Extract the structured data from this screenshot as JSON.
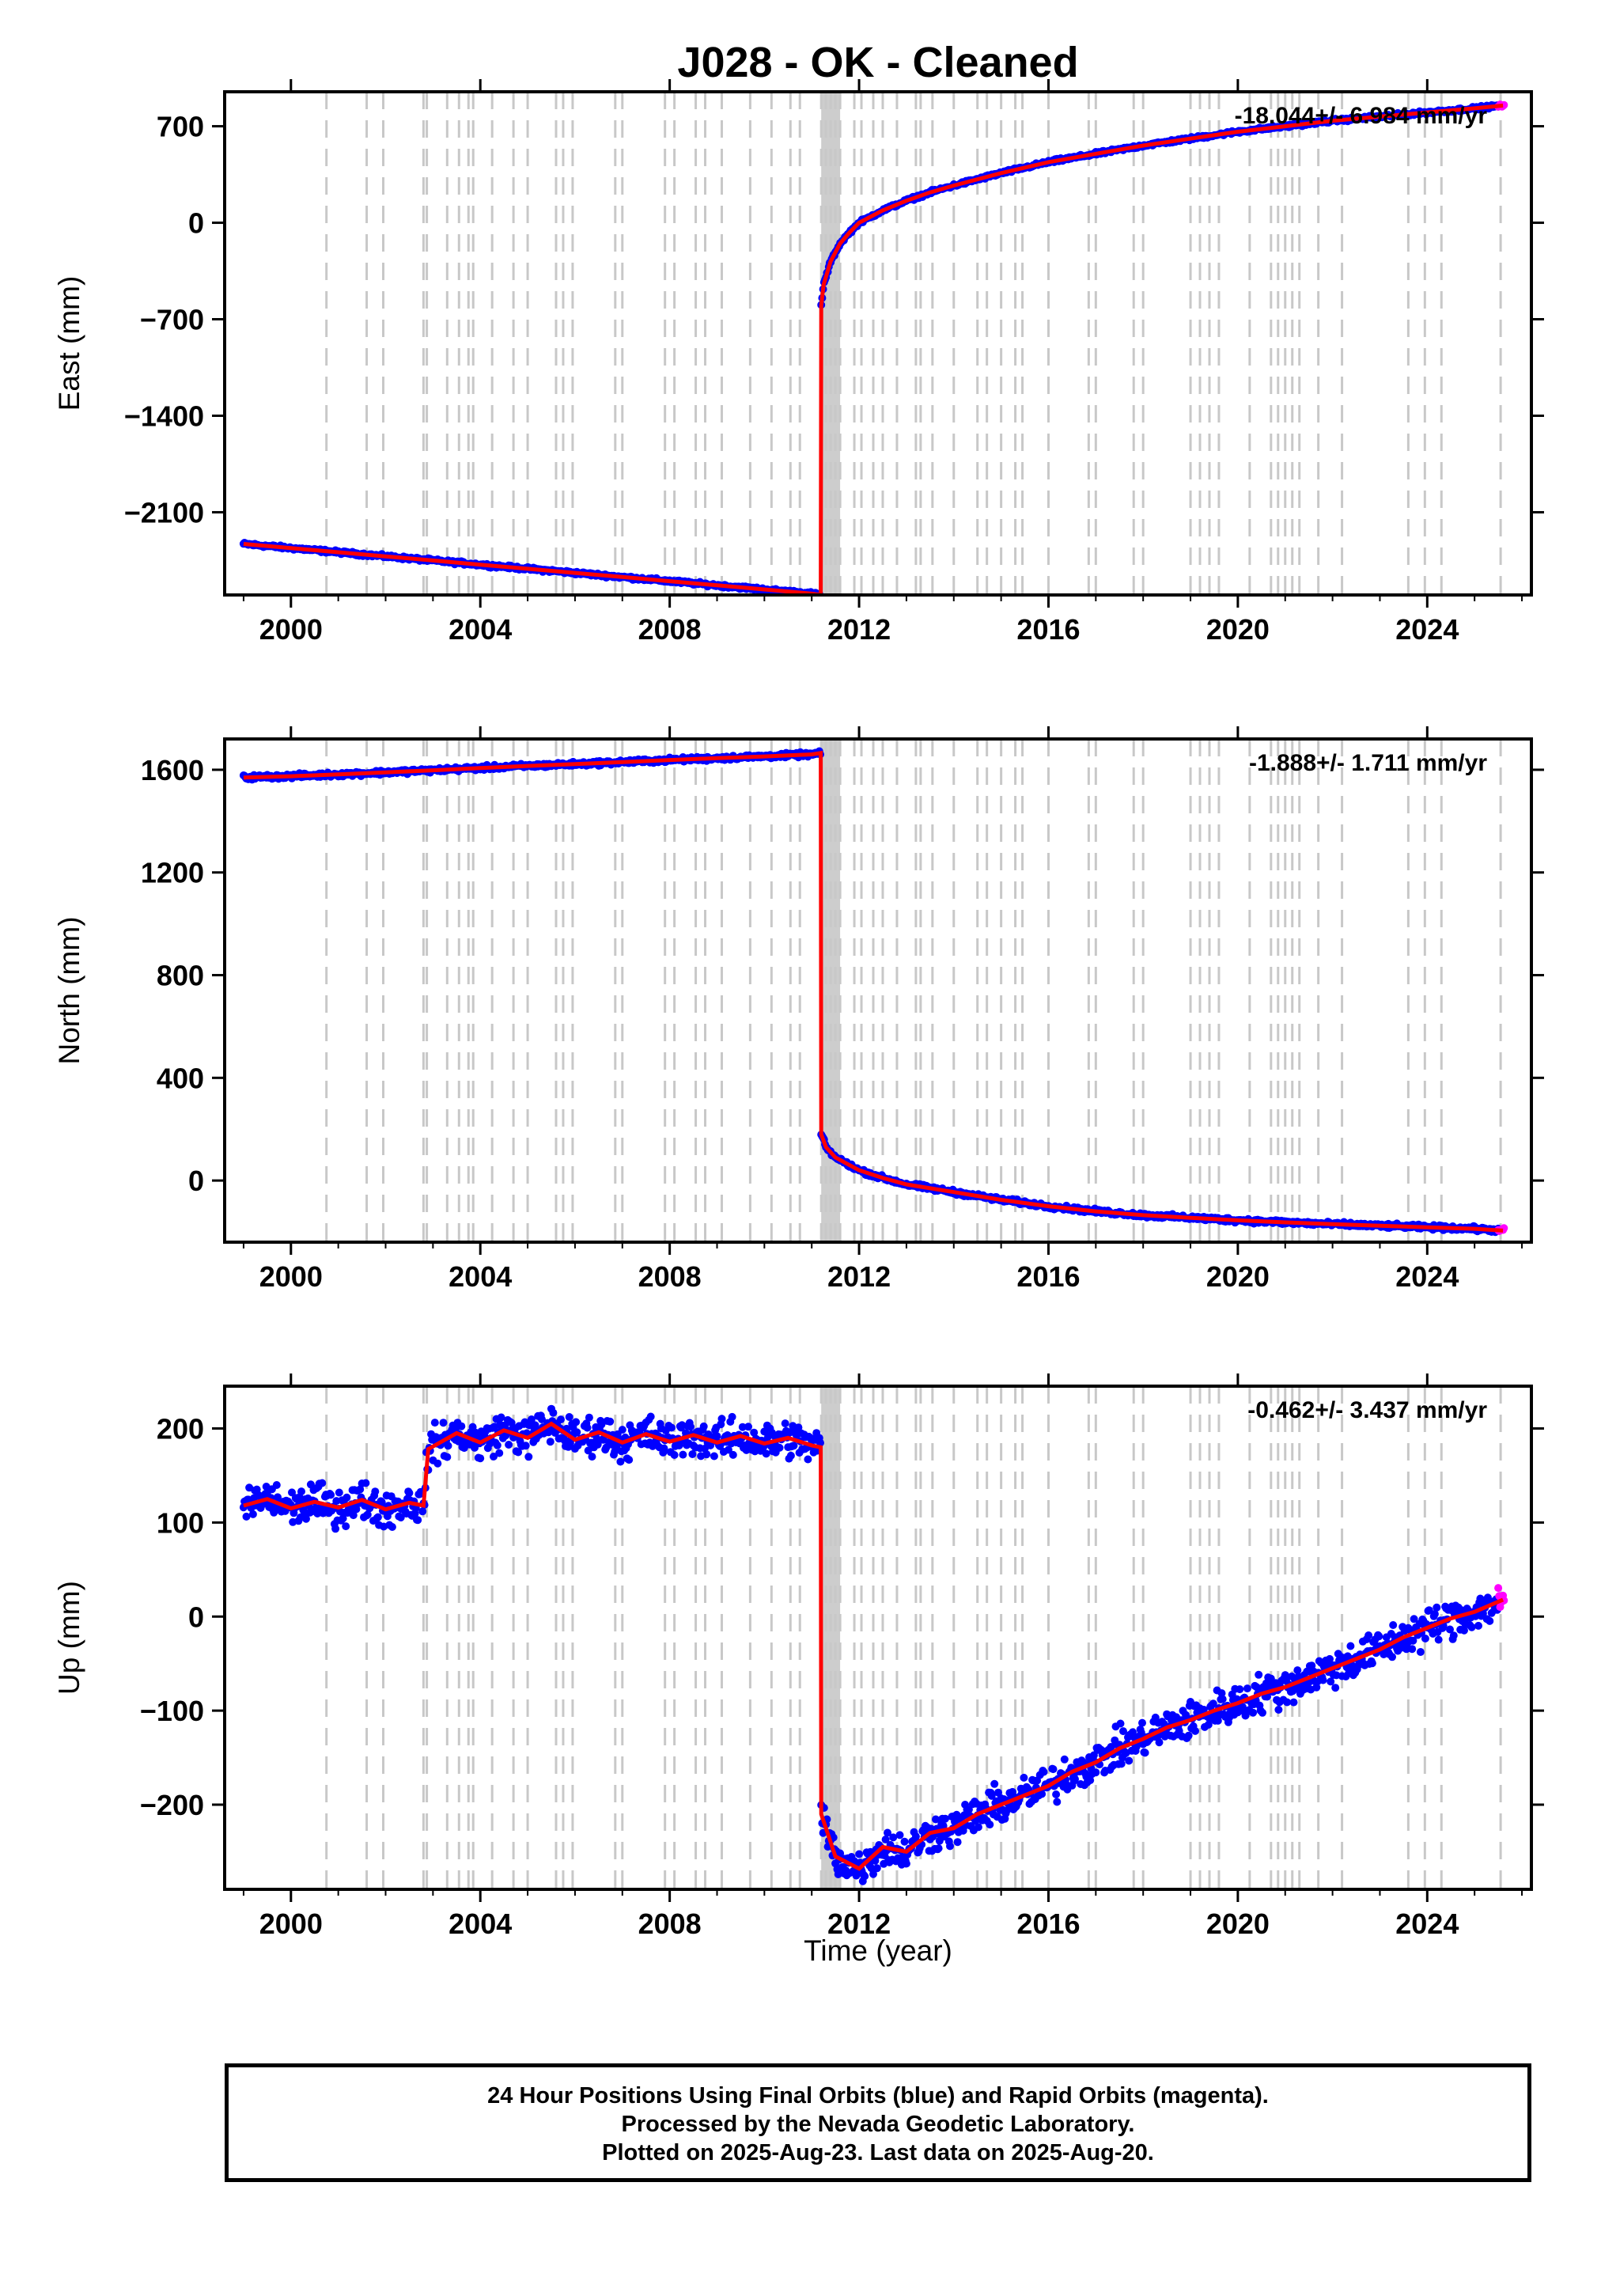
{
  "chart_data": {
    "type": "scatter",
    "title": "J028  - OK - Cleaned",
    "xlabel": "Time (year)",
    "xlim": [
      1998.6,
      2026.2
    ],
    "xticks": [
      2000,
      2004,
      2008,
      2012,
      2016,
      2020,
      2024
    ],
    "xtick_labels": [
      "2000",
      "2004",
      "2008",
      "2012",
      "2016",
      "2020",
      "2024"
    ],
    "grid": "dashed gray vertical lines at equipment/offset epochs; solid gray band around 2011.2-2011.6",
    "colors": {
      "final_orbits": "#0000ff",
      "rapid_orbits": "#ff00ff",
      "model": "#ff0000",
      "offset_lines": "#c8c8c8"
    },
    "offset_epochs": [
      2000.75,
      2001.6,
      2001.95,
      2002.8,
      2002.87,
      2003.3,
      2003.55,
      2003.75,
      2003.85,
      2004.25,
      2004.7,
      2005.0,
      2005.6,
      2005.75,
      2005.95,
      2006.85,
      2007.0,
      2007.9,
      2008.1,
      2008.55,
      2008.75,
      2009.1,
      2009.7,
      2010.15,
      2010.55,
      2010.75,
      2011.2,
      2011.3,
      2011.4,
      2011.5,
      2011.6,
      2011.9,
      2012.05,
      2012.3,
      2012.5,
      2012.8,
      2013.2,
      2013.3,
      2013.55,
      2014.0,
      2014.5,
      2014.7,
      2015.0,
      2015.3,
      2015.45,
      2016.0,
      2016.85,
      2017.0,
      2017.8,
      2018.0,
      2019.0,
      2019.2,
      2019.4,
      2019.6,
      2020.25,
      2020.7,
      2020.85,
      2021.0,
      2021.15,
      2021.3,
      2021.7,
      2022.2,
      2023.6,
      2023.95,
      2024.3,
      2025.55
    ],
    "panels": [
      {
        "name": "East",
        "ylabel": "East (mm)",
        "ylim": [
          -2700,
          950
        ],
        "yticks": [
          700,
          0,
          -700,
          -1400,
          -2100
        ],
        "ytick_labels": [
          "700",
          "0",
          "−700",
          "−1400",
          "−2100"
        ],
        "rate": "-18.044+/- 6.984 mm/yr",
        "x": [
          1999.0,
          2000.0,
          2001.0,
          2002.0,
          2003.0,
          2004.0,
          2005.0,
          2006.0,
          2007.0,
          2008.0,
          2009.0,
          2010.0,
          2011.0,
          2011.19,
          2011.2,
          2011.25,
          2011.4,
          2011.6,
          2011.8,
          2012.0,
          2012.5,
          2013.0,
          2013.5,
          2014.0,
          2015.0,
          2016.0,
          2017.0,
          2018.0,
          2019.0,
          2020.0,
          2021.0,
          2022.0,
          2023.0,
          2024.0,
          2025.0,
          2025.6
        ],
        "y": [
          -2330,
          -2360,
          -2390,
          -2420,
          -2450,
          -2480,
          -2510,
          -2540,
          -2570,
          -2600,
          -2630,
          -2660,
          -2690,
          -2700,
          -600,
          -450,
          -280,
          -150,
          -70,
          0,
          90,
          160,
          220,
          270,
          360,
          440,
          500,
          560,
          610,
          660,
          700,
          740,
          770,
          800,
          830,
          850
        ]
      },
      {
        "name": "North",
        "ylabel": "North (mm)",
        "ylim": [
          -240,
          1720
        ],
        "yticks": [
          1600,
          1200,
          800,
          400,
          0
        ],
        "ytick_labels": [
          "1600",
          "1200",
          "800",
          "400",
          "0"
        ],
        "rate": "-1.888+/- 1.711 mm/yr",
        "x": [
          1999.0,
          2000.0,
          2001.0,
          2002.0,
          2003.0,
          2004.0,
          2005.0,
          2006.0,
          2007.0,
          2008.0,
          2009.0,
          2010.0,
          2011.0,
          2011.19,
          2011.2,
          2011.3,
          2011.5,
          2011.8,
          2012.0,
          2012.5,
          2013.0,
          2014.0,
          2015.0,
          2016.0,
          2017.0,
          2018.0,
          2019.0,
          2020.0,
          2021.0,
          2022.0,
          2023.0,
          2024.0,
          2025.0,
          2025.6
        ],
        "y": [
          1570,
          1575,
          1582,
          1590,
          1598,
          1607,
          1615,
          1622,
          1630,
          1638,
          1645,
          1652,
          1660,
          1665,
          180,
          130,
          90,
          60,
          40,
          10,
          -15,
          -45,
          -75,
          -100,
          -120,
          -135,
          -145,
          -155,
          -163,
          -170,
          -176,
          -182,
          -188,
          -195
        ]
      },
      {
        "name": "Up",
        "ylabel": "Up (mm)",
        "ylim": [
          -290,
          245
        ],
        "yticks": [
          200,
          100,
          0,
          -100,
          -200
        ],
        "ytick_labels": [
          "200",
          "100",
          "0",
          "−100",
          "−200"
        ],
        "rate": "-0.462+/- 3.437 mm/yr",
        "x": [
          1999.0,
          1999.5,
          2000.0,
          2000.5,
          2001.0,
          2001.5,
          2002.0,
          2002.5,
          2002.8,
          2002.9,
          2003.5,
          2004.0,
          2004.5,
          2005.0,
          2005.5,
          2006.0,
          2006.5,
          2007.0,
          2007.5,
          2008.0,
          2008.5,
          2009.0,
          2009.5,
          2010.0,
          2010.5,
          2011.0,
          2011.19,
          2011.2,
          2011.5,
          2012.0,
          2012.5,
          2013.0,
          2013.5,
          2014.0,
          2014.5,
          2015.0,
          2015.5,
          2016.0,
          2016.5,
          2017.0,
          2017.5,
          2018.0,
          2018.5,
          2019.0,
          2019.5,
          2020.0,
          2020.5,
          2021.0,
          2021.5,
          2022.0,
          2022.5,
          2023.0,
          2023.5,
          2024.0,
          2024.5,
          2025.0,
          2025.6
        ],
        "y": [
          118,
          125,
          115,
          122,
          116,
          124,
          114,
          121,
          118,
          178,
          195,
          185,
          198,
          190,
          205,
          188,
          196,
          185,
          194,
          186,
          193,
          185,
          192,
          184,
          190,
          182,
          180,
          -210,
          -255,
          -268,
          -245,
          -250,
          -230,
          -225,
          -210,
          -200,
          -190,
          -180,
          -165,
          -155,
          -140,
          -130,
          -118,
          -110,
          -100,
          -92,
          -82,
          -75,
          -65,
          -55,
          -45,
          -35,
          -22,
          -12,
          -2,
          5,
          18
        ]
      }
    ]
  },
  "footer": {
    "line1": "24 Hour Positions Using Final Orbits (blue) and Rapid Orbits (magenta).",
    "line2": "Processed by the Nevada Geodetic Laboratory.",
    "line3": "Plotted on 2025-Aug-23. Last data on 2025-Aug-20."
  }
}
